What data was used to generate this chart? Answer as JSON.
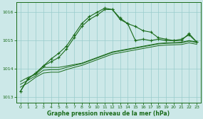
{
  "title": "Graphe pression niveau de la mer (hPa)",
  "bg_color": "#cce8e8",
  "grid_color": "#99cccc",
  "line_color": "#1a6b1a",
  "xlim": [
    -0.5,
    23.5
  ],
  "ylim": [
    1012.8,
    1016.35
  ],
  "yticks": [
    1013,
    1014,
    1015,
    1016
  ],
  "xticks": [
    0,
    1,
    2,
    3,
    4,
    5,
    6,
    7,
    8,
    9,
    10,
    11,
    12,
    13,
    14,
    15,
    16,
    17,
    18,
    19,
    20,
    21,
    22,
    23
  ],
  "peaked1": [
    1013.2,
    1013.65,
    1013.85,
    1014.1,
    1014.25,
    1014.4,
    1014.7,
    1015.1,
    1015.5,
    1015.75,
    1015.9,
    1016.1,
    1016.1,
    1015.8,
    1015.6,
    1015.0,
    1015.05,
    1015.0,
    1015.05,
    1015.0,
    1015.0,
    1015.05,
    1015.2,
    1014.95
  ],
  "peaked2": [
    1013.2,
    1013.65,
    1013.85,
    1014.1,
    1014.35,
    1014.55,
    1014.8,
    1015.2,
    1015.6,
    1015.85,
    1016.0,
    1016.15,
    1016.1,
    1015.75,
    1015.6,
    1015.5,
    1015.35,
    1015.3,
    1015.1,
    1015.05,
    1015.0,
    1015.0,
    1015.25,
    1014.95
  ],
  "grad1": [
    1013.55,
    1013.7,
    1013.8,
    1014.05,
    1014.05,
    1014.05,
    1014.1,
    1014.15,
    1014.2,
    1014.3,
    1014.4,
    1014.5,
    1014.6,
    1014.65,
    1014.7,
    1014.75,
    1014.8,
    1014.85,
    1014.9,
    1014.92,
    1014.93,
    1014.94,
    1015.0,
    1014.95
  ],
  "grad2": [
    1013.45,
    1013.6,
    1013.75,
    1013.95,
    1013.97,
    1013.97,
    1014.05,
    1014.12,
    1014.18,
    1014.28,
    1014.38,
    1014.48,
    1014.58,
    1014.63,
    1014.68,
    1014.73,
    1014.78,
    1014.83,
    1014.88,
    1014.9,
    1014.91,
    1014.92,
    1014.98,
    1014.93
  ],
  "grad3": [
    1013.35,
    1013.5,
    1013.7,
    1013.85,
    1013.88,
    1013.88,
    1013.97,
    1014.05,
    1014.12,
    1014.22,
    1014.32,
    1014.42,
    1014.52,
    1014.57,
    1014.62,
    1014.67,
    1014.72,
    1014.77,
    1014.82,
    1014.84,
    1014.85,
    1014.86,
    1014.92,
    1014.87
  ]
}
